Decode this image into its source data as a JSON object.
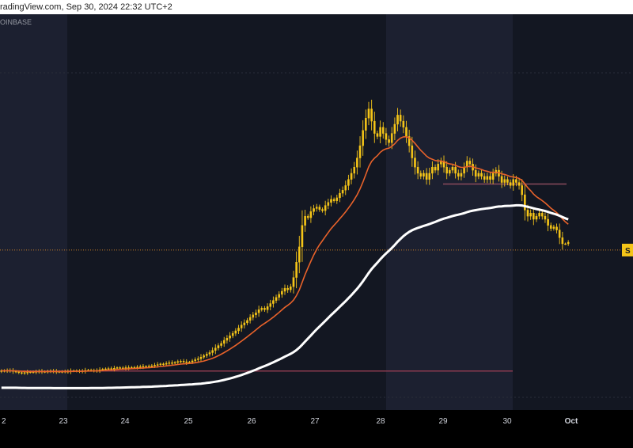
{
  "header": {
    "text": "radingView.com, Sep 30, 2024 22:32 UTC+2"
  },
  "exchange_label": "OINBASE",
  "price_tag": "S",
  "colors": {
    "background": "#131722",
    "band": "#1c2030",
    "candle": "#f5c518",
    "ema_fast": "#e8622a",
    "ema_slow": "#ffffff",
    "level_line": "#8a3a4f",
    "axis_text": "#d1d4dc",
    "bottom_strip": "#000000"
  },
  "chart_data": {
    "type": "candlestick",
    "x_ticks": [
      "2",
      "23",
      "24",
      "25",
      "26",
      "27",
      "28",
      "29",
      "30",
      "Oct"
    ],
    "series": [
      {
        "role": "price",
        "close": [
          0.56,
          0.55,
          0.57,
          0.56,
          0.54,
          0.52,
          0.5,
          0.49,
          0.5,
          0.51,
          0.52,
          0.51,
          0.53,
          0.54,
          0.53,
          0.52,
          0.54,
          0.55,
          0.54,
          0.53,
          0.52,
          0.53,
          0.54,
          0.53,
          0.55,
          0.56,
          0.55,
          0.54,
          0.55,
          0.57,
          0.58,
          0.57,
          0.56,
          0.57,
          0.59,
          0.61,
          0.62,
          0.63,
          0.62,
          0.64,
          0.66,
          0.65,
          0.64,
          0.66,
          0.65,
          0.67,
          0.66,
          0.68,
          0.69,
          0.7,
          0.69,
          0.71,
          0.72,
          0.74,
          0.76,
          0.78,
          0.77,
          0.8,
          0.82,
          0.81,
          0.83,
          0.86,
          0.87,
          0.85,
          0.83,
          0.84,
          0.88,
          0.92,
          0.95,
          1.0,
          1.05,
          1.1,
          1.15,
          1.22,
          1.3,
          1.38,
          1.45,
          1.55,
          1.62,
          1.7,
          1.78,
          1.86,
          1.95,
          2.05,
          2.12,
          2.2,
          2.3,
          2.38,
          2.45,
          2.55,
          2.6,
          2.55,
          2.65,
          2.75,
          2.85,
          2.95,
          3.05,
          3.15,
          3.25,
          3.2,
          3.3,
          3.6,
          4.1,
          4.6,
          5.3,
          5.6,
          5.55,
          5.75,
          5.85,
          5.9,
          5.82,
          5.78,
          5.95,
          6.05,
          6.15,
          6.1,
          6.2,
          6.35,
          6.45,
          6.6,
          6.8,
          7.0,
          7.2,
          7.5,
          7.9,
          8.4,
          8.8,
          9.1,
          8.7,
          8.3,
          8.2,
          8.5,
          8.3,
          8.1,
          8.0,
          8.3,
          8.6,
          8.9,
          8.7,
          8.5,
          8.2,
          7.9,
          7.5,
          7.2,
          7.0,
          6.9,
          7.0,
          6.8,
          7.0,
          7.2,
          7.1,
          7.3,
          7.4,
          7.2,
          7.0,
          7.1,
          7.2,
          7.0,
          6.9,
          7.0,
          7.2,
          7.4,
          7.3,
          7.1,
          6.9,
          7.0,
          6.9,
          6.8,
          6.9,
          6.8,
          7.0,
          7.1,
          6.9,
          6.7,
          6.8,
          6.7,
          6.6,
          6.8,
          6.7,
          6.6,
          6.3,
          5.8,
          5.6,
          5.7,
          5.5,
          5.6,
          5.7,
          5.6,
          5.5,
          5.3,
          5.2,
          5.25,
          5.15,
          4.9,
          4.7,
          4.7,
          4.75
        ]
      },
      {
        "role": "ema-fast",
        "name": ""
      },
      {
        "role": "ema-slow",
        "name": ""
      }
    ],
    "levels": [
      {
        "value": 6.65,
        "style": "line"
      },
      {
        "value": 4.65,
        "style": "dotted"
      },
      {
        "value": 0.55,
        "style": "line"
      }
    ],
    "shaded_sessions": [
      "22",
      "28"
    ]
  }
}
